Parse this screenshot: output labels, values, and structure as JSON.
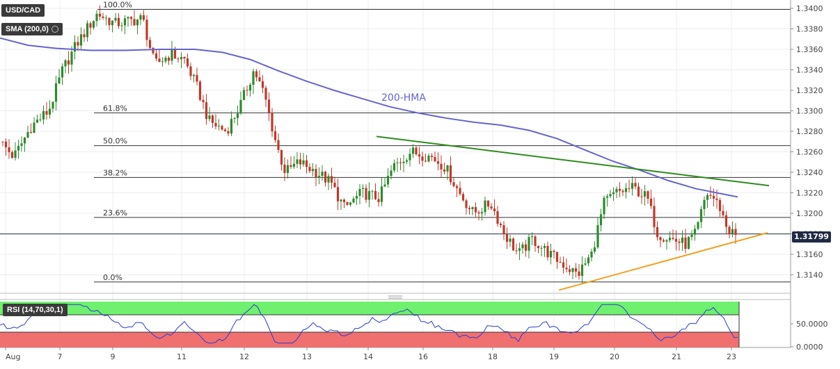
{
  "chart_data": {
    "type": "candlestick",
    "symbol": "USD/CAD",
    "indicator_label": "SMA (200,0)",
    "current_price": 1.31799,
    "current_price_label": "1.31799",
    "y_axis": {
      "range": [
        1.3122,
        1.3406
      ],
      "ticks": [
        "1.3140",
        "1.3160",
        "1.3180",
        "1.3200",
        "1.3220",
        "1.3240",
        "1.3260",
        "1.3280",
        "1.3300",
        "1.3320",
        "1.3340",
        "1.3360",
        "1.3380",
        "1.3400"
      ]
    },
    "x_axis": {
      "ticks": [
        "Aug",
        "7",
        "9",
        "11",
        "12",
        "13",
        "14",
        "16",
        "18",
        "19",
        "20",
        "21",
        "23"
      ]
    },
    "fibonacci": [
      {
        "label": "100.0%",
        "price": 1.3399
      },
      {
        "label": "61.8%",
        "price": 1.3298
      },
      {
        "label": "50.0%",
        "price": 1.3266
      },
      {
        "label": "38.2%",
        "price": 1.3235
      },
      {
        "label": "23.6%",
        "price": 1.3196
      },
      {
        "label": "0.0%",
        "price": 1.3133
      }
    ],
    "hma": {
      "label": "200-HMA",
      "color": "#6464d2",
      "points": [
        [
          0,
          1.3371
        ],
        [
          40,
          1.3364
        ],
        [
          80,
          1.3361
        ],
        [
          130,
          1.3359
        ],
        [
          180,
          1.3359
        ],
        [
          230,
          1.336
        ],
        [
          280,
          1.336
        ],
        [
          320,
          1.3357
        ],
        [
          360,
          1.335
        ],
        [
          400,
          1.3339
        ],
        [
          440,
          1.3329
        ],
        [
          480,
          1.332
        ],
        [
          520,
          1.3312
        ],
        [
          560,
          1.3304
        ],
        [
          600,
          1.3298
        ],
        [
          640,
          1.3293
        ],
        [
          680,
          1.3289
        ],
        [
          720,
          1.3286
        ],
        [
          760,
          1.3281
        ],
        [
          800,
          1.3273
        ],
        [
          840,
          1.3262
        ],
        [
          880,
          1.3251
        ],
        [
          920,
          1.3242
        ],
        [
          960,
          1.3232
        ],
        [
          1000,
          1.3224
        ],
        [
          1030,
          1.322
        ],
        [
          1060,
          1.3216
        ]
      ]
    },
    "resistance_trendline": {
      "color": "#2e8b1e",
      "start": [
        541,
        1.3275
      ],
      "end": [
        1105,
        1.3227
      ]
    },
    "support_trendline": {
      "color": "#f0a020",
      "start": [
        803,
        1.3125
      ],
      "end": [
        1103,
        1.3181
      ]
    },
    "rsi": {
      "label": "RSI (14,70,30,1)",
      "ticks": [
        "50.0000",
        "0.0000"
      ],
      "overbought_color": "#6ff06f",
      "oversold_color": "#f07070",
      "line_color": "#2b3ccc"
    }
  }
}
